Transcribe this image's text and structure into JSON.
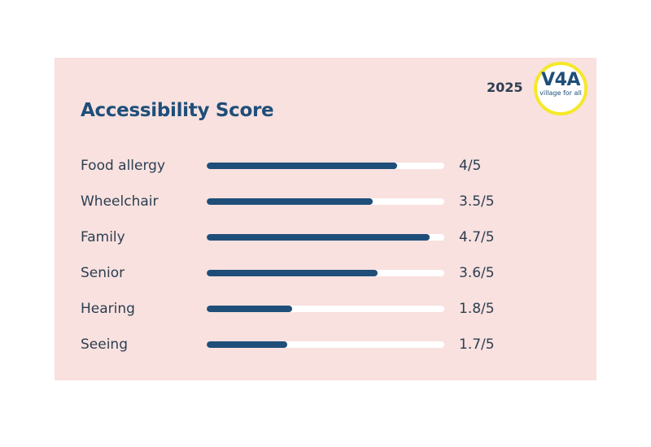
{
  "header": {
    "title": "Accessibility Score",
    "year": "2025",
    "logo": {
      "main": "V4A",
      "sub": "village for all"
    }
  },
  "scores": [
    {
      "label": "Food allergy",
      "score": "4/5",
      "fraction": 0.8
    },
    {
      "label": "Wheelchair",
      "score": "3.5/5",
      "fraction": 0.7
    },
    {
      "label": "Family",
      "score": "4.7/5",
      "fraction": 0.94
    },
    {
      "label": "Senior",
      "score": "3.6/5",
      "fraction": 0.72
    },
    {
      "label": "Hearing",
      "score": "1.8/5",
      "fraction": 0.36
    },
    {
      "label": "Seeing",
      "score": "1.7/5",
      "fraction": 0.34
    }
  ],
  "colors": {
    "card_background": "#f8e1df",
    "bar_fill": "#1f4e79",
    "bar_track": "#ffffff",
    "logo_ring": "#f5e82a"
  }
}
